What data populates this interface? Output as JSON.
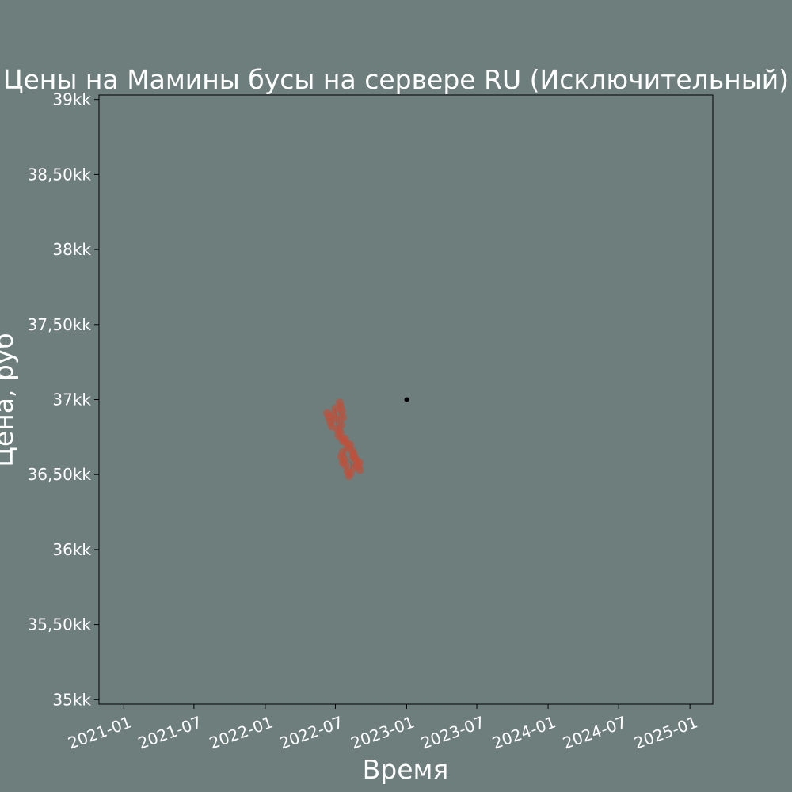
{
  "colors": {
    "background": "#6d7e7d",
    "plot_background": "#6d7e7d",
    "axes": "#000000",
    "text": "#ffffff",
    "scatter_points": "#c0503a",
    "scatter_stroke": "#8e5a4c",
    "highlight_point": "#000000"
  },
  "chart_data": {
    "type": "scatter",
    "title": "Цены на Мамины бусы на сервере RU (Исключительный)",
    "xlabel": "Время",
    "ylabel": "Цена, руб",
    "x_ticks": [
      "2021-01",
      "2021-07",
      "2022-01",
      "2022-07",
      "2023-01",
      "2023-07",
      "2024-01",
      "2024-07",
      "2025-01"
    ],
    "y_ticks": [
      {
        "value": 35000000,
        "label": "35kk"
      },
      {
        "value": 35500000,
        "label": "35,50kk"
      },
      {
        "value": 36000000,
        "label": "36kk"
      },
      {
        "value": 36500000,
        "label": "36,50kk"
      },
      {
        "value": 37000000,
        "label": "37kk"
      },
      {
        "value": 37500000,
        "label": "37,50kk"
      },
      {
        "value": 38000000,
        "label": "38kk"
      },
      {
        "value": 38500000,
        "label": "38,50kk"
      },
      {
        "value": 39000000,
        "label": "39kk"
      }
    ],
    "xlim": [
      "2020-10-29",
      "2025-03-01"
    ],
    "ylim": [
      34970000,
      39030000
    ],
    "grid": false,
    "series": [
      {
        "points": [
          {
            "x": "2022-06-10",
            "y": 36910000
          },
          {
            "x": "2022-06-14",
            "y": 36880000
          },
          {
            "x": "2022-06-18",
            "y": 36850000
          },
          {
            "x": "2022-06-22",
            "y": 36820000
          },
          {
            "x": "2022-06-26",
            "y": 36900000
          },
          {
            "x": "2022-07-01",
            "y": 36940000
          },
          {
            "x": "2022-07-04",
            "y": 36870000
          },
          {
            "x": "2022-07-06",
            "y": 36800000
          },
          {
            "x": "2022-07-09",
            "y": 36760000
          },
          {
            "x": "2022-07-12",
            "y": 36980000
          },
          {
            "x": "2022-07-15",
            "y": 36950000
          },
          {
            "x": "2022-07-18",
            "y": 36920000
          },
          {
            "x": "2022-07-20",
            "y": 36880000
          },
          {
            "x": "2022-07-16",
            "y": 36830000
          },
          {
            "x": "2022-07-14",
            "y": 36780000
          },
          {
            "x": "2022-07-18",
            "y": 36740000
          },
          {
            "x": "2022-07-22",
            "y": 36720000
          },
          {
            "x": "2022-07-26",
            "y": 36740000
          },
          {
            "x": "2022-07-30",
            "y": 36710000
          },
          {
            "x": "2022-08-02",
            "y": 36680000
          },
          {
            "x": "2022-07-16",
            "y": 36620000
          },
          {
            "x": "2022-07-20",
            "y": 36580000
          },
          {
            "x": "2022-07-24",
            "y": 36600000
          },
          {
            "x": "2022-07-28",
            "y": 36560000
          },
          {
            "x": "2022-08-01",
            "y": 36520000
          },
          {
            "x": "2022-08-05",
            "y": 36490000
          },
          {
            "x": "2022-08-09",
            "y": 36510000
          },
          {
            "x": "2022-08-13",
            "y": 36660000
          },
          {
            "x": "2022-08-17",
            "y": 36640000
          },
          {
            "x": "2022-08-21",
            "y": 36610000
          },
          {
            "x": "2022-08-25",
            "y": 36590000
          },
          {
            "x": "2022-08-29",
            "y": 36560000
          },
          {
            "x": "2022-09-02",
            "y": 36530000
          },
          {
            "x": "2022-08-15",
            "y": 36620000
          },
          {
            "x": "2022-08-19",
            "y": 36545000
          },
          {
            "x": "2022-07-20",
            "y": 36650000
          },
          {
            "x": "2022-08-08",
            "y": 36700000
          },
          {
            "x": "2022-09-01",
            "y": 36580000
          }
        ]
      },
      {
        "points": [
          {
            "x": "2023-01-01",
            "y": 37000000
          }
        ]
      }
    ]
  }
}
